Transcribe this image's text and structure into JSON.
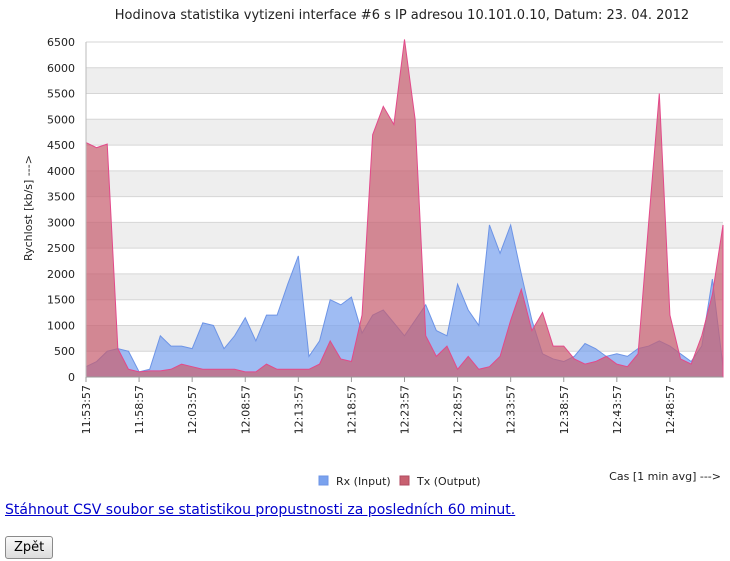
{
  "chart_data": {
    "type": "area",
    "title": "Hodinova statistika vytizeni interface #6 s IP adresou 10.101.0.10, Datum: 23. 04. 2012",
    "ylabel": "Rychlost [kb/s] --->",
    "xlabel": "Cas [1 min avg] --->",
    "ylim": [
      0,
      6500
    ],
    "yticks": [
      0,
      500,
      1000,
      1500,
      2000,
      2500,
      3000,
      3500,
      4000,
      4500,
      5000,
      5500,
      6000,
      6500
    ],
    "x_tick_labels": [
      "11:53:57",
      "11:58:57",
      "12:03:57",
      "12:08:57",
      "12:13:57",
      "12:18:57",
      "12:23:57",
      "12:28:57",
      "12:33:57",
      "12:38:57",
      "12:43:57",
      "12:48:57"
    ],
    "x_count": 61,
    "grid": true,
    "legend_position": "bottom",
    "series": [
      {
        "name": "Rx (Input)",
        "color": "#7aa2ee",
        "values": [
          200,
          300,
          500,
          550,
          500,
          100,
          150,
          800,
          600,
          600,
          550,
          1050,
          1000,
          550,
          800,
          1150,
          700,
          1200,
          1200,
          1800,
          2350,
          400,
          700,
          1500,
          1400,
          1550,
          850,
          1200,
          1300,
          1050,
          800,
          1100,
          1400,
          900,
          800,
          1800,
          1300,
          1000,
          2950,
          2400,
          2950,
          2000,
          1100,
          450,
          350,
          300,
          400,
          650,
          550,
          400,
          450,
          400,
          550,
          600,
          700,
          600,
          450,
          300,
          600,
          1900,
          200
        ]
      },
      {
        "name": "Tx (Output)",
        "color": "#c86070",
        "values": [
          4550,
          4450,
          4520,
          550,
          150,
          100,
          120,
          120,
          150,
          250,
          200,
          150,
          150,
          150,
          150,
          100,
          100,
          250,
          150,
          150,
          150,
          150,
          250,
          700,
          350,
          300,
          1200,
          4700,
          5250,
          4900,
          6550,
          5000,
          800,
          400,
          600,
          150,
          400,
          150,
          200,
          400,
          1100,
          1700,
          900,
          1250,
          600,
          600,
          350,
          250,
          300,
          400,
          250,
          200,
          450,
          3000,
          5500,
          1200,
          350,
          250,
          800,
          1600,
          2950
        ]
      }
    ]
  },
  "links": {
    "csv_download": "Stáhnout CSV soubor se statistikou propustnosti za posledních 60 minut."
  },
  "buttons": {
    "back": "Zpět"
  }
}
